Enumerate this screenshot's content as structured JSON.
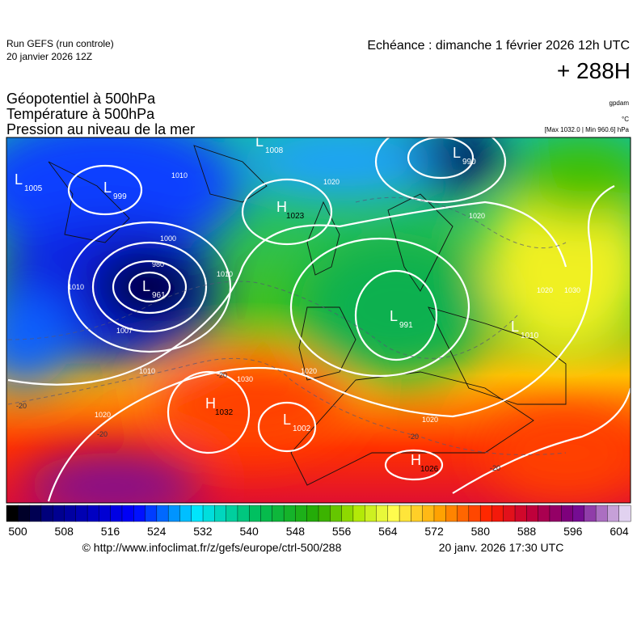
{
  "header": {
    "run": "Run GEFS (run controle)",
    "date": "20 janvier 2026 12Z",
    "echeance": "Echéance : dimanche 1 février 2026 12h UTC",
    "lead": "+ 288H",
    "titles": [
      "Géopotentiel à 500hPa",
      "Température à 500hPa",
      "Pression au niveau de la mer"
    ],
    "units": [
      "gpdam",
      "°C",
      "[Max 1032.0 | Min 960.6] hPa"
    ]
  },
  "map": {
    "centers": [
      {
        "type": "L",
        "value": "1005"
      },
      {
        "type": "L",
        "value": "999"
      },
      {
        "type": "L",
        "value": "1008"
      },
      {
        "type": "H",
        "value": "1023"
      },
      {
        "type": "L",
        "value": "990"
      },
      {
        "type": "L",
        "value": "961"
      },
      {
        "type": "L",
        "value": "991"
      },
      {
        "type": "L",
        "value": "1010"
      },
      {
        "type": "H",
        "value": "1032"
      },
      {
        "type": "L",
        "value": "1002"
      },
      {
        "type": "H",
        "value": "1026"
      }
    ],
    "isobar_labels": [
      "1010",
      "1020",
      "1000",
      "980",
      "1010",
      "1010",
      "1007",
      "1010",
      "1020",
      "1030",
      "1020",
      "1020",
      "1020",
      "1020",
      "1030"
    ],
    "temperature_labels": [
      "-20",
      "-20",
      "-20",
      "-20",
      "-20"
    ]
  },
  "colorbar": {
    "ticks": [
      500,
      508,
      516,
      524,
      532,
      540,
      548,
      556,
      564,
      572,
      580,
      588,
      596,
      604
    ]
  },
  "footer": {
    "url": "© http://www.infoclimat.fr/z/gefs/europe/ctrl-500/288",
    "timestamp": "20 janv. 2026 17:30 UTC"
  }
}
